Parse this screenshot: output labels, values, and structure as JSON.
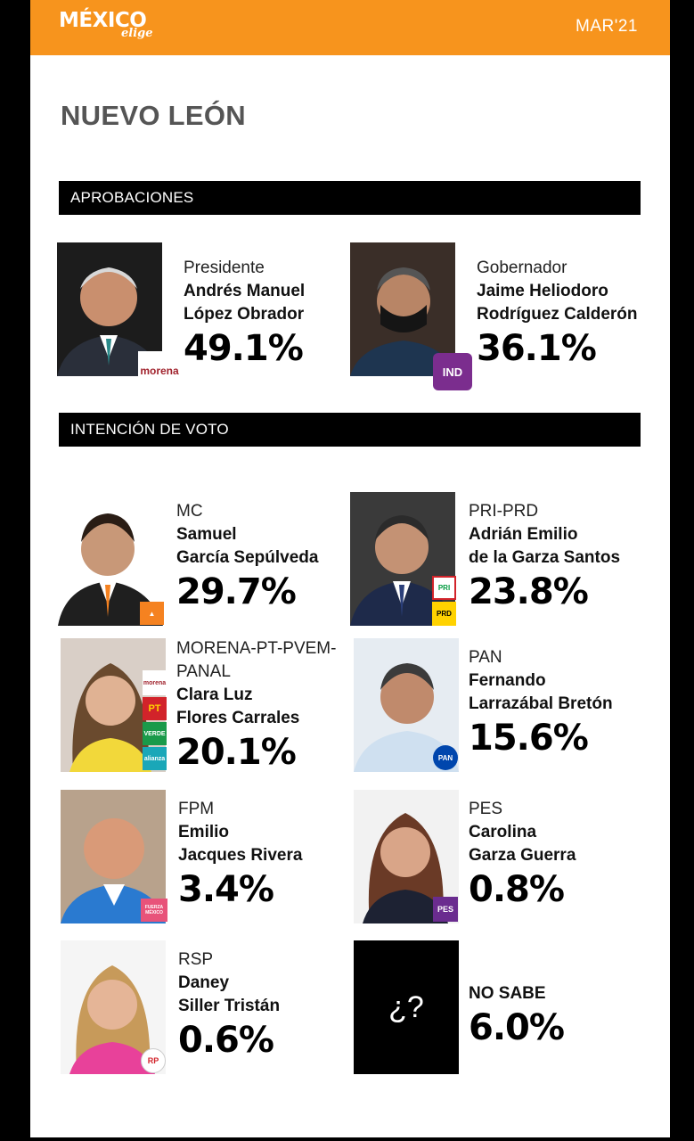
{
  "header": {
    "logo_main": "MÉXICO",
    "logo_sub": "elige",
    "date": "MAR'21"
  },
  "state_title": "NUEVO LEÓN",
  "sections": {
    "approvals": "APROBACIONES",
    "vote_intention": "INTENCIÓN DE VOTO"
  },
  "approvals": [
    {
      "role": "Presidente",
      "name_line1": "Andrés Manuel",
      "name_line2": "López Obrador",
      "percent": "49.1%",
      "badge": "morena"
    },
    {
      "role": "Gobernador",
      "name_line1": "Jaime Heliodoro",
      "name_line2": "Rodríguez Calderón",
      "percent": "36.1%",
      "badge": "IND"
    }
  ],
  "candidates": [
    {
      "party": "MC",
      "name_line1": "Samuel",
      "name_line2": "García Sepúlveda",
      "percent": "29.7%"
    },
    {
      "party": "PRI-PRD",
      "name_line1": "Adrián Emilio",
      "name_line2": "de la Garza Santos",
      "percent": "23.8%",
      "badge_top": "PRI",
      "badge_bottom": "PRD"
    },
    {
      "party_line1": "MORENA-PT-PVEM-",
      "party_line2": "PANAL",
      "name_line1": "Clara Luz",
      "name_line2": "Flores Carrales",
      "percent": "20.1%",
      "badges": [
        "morena",
        "PT",
        "VERDE",
        "alianza"
      ]
    },
    {
      "party": "PAN",
      "name_line1": "Fernando",
      "name_line2": "Larrazábal Bretón",
      "percent": "15.6%",
      "badge": "PAN"
    },
    {
      "party": "FPM",
      "name_line1": "Emilio",
      "name_line2": "Jacques Rivera",
      "percent": "3.4%",
      "badge": "FUERZA MÉXICO"
    },
    {
      "party": "PES",
      "name_line1": "Carolina",
      "name_line2": "Garza Guerra",
      "percent": "0.8%",
      "badge": "PES"
    },
    {
      "party": "RSP",
      "name_line1": "Daney",
      "name_line2": "Siller Tristán",
      "percent": "0.6%",
      "badge": "RP"
    },
    {
      "label": "NO SABE",
      "percent": "6.0%",
      "placeholder": "¿?"
    }
  ],
  "colors": {
    "header": "#f7941d",
    "section_bar": "#000000",
    "ind_badge": "#7b2d8e",
    "mc_badge": "#f58220",
    "pan_badge": "#0046ad",
    "pes_badge": "#6a2c8f"
  }
}
